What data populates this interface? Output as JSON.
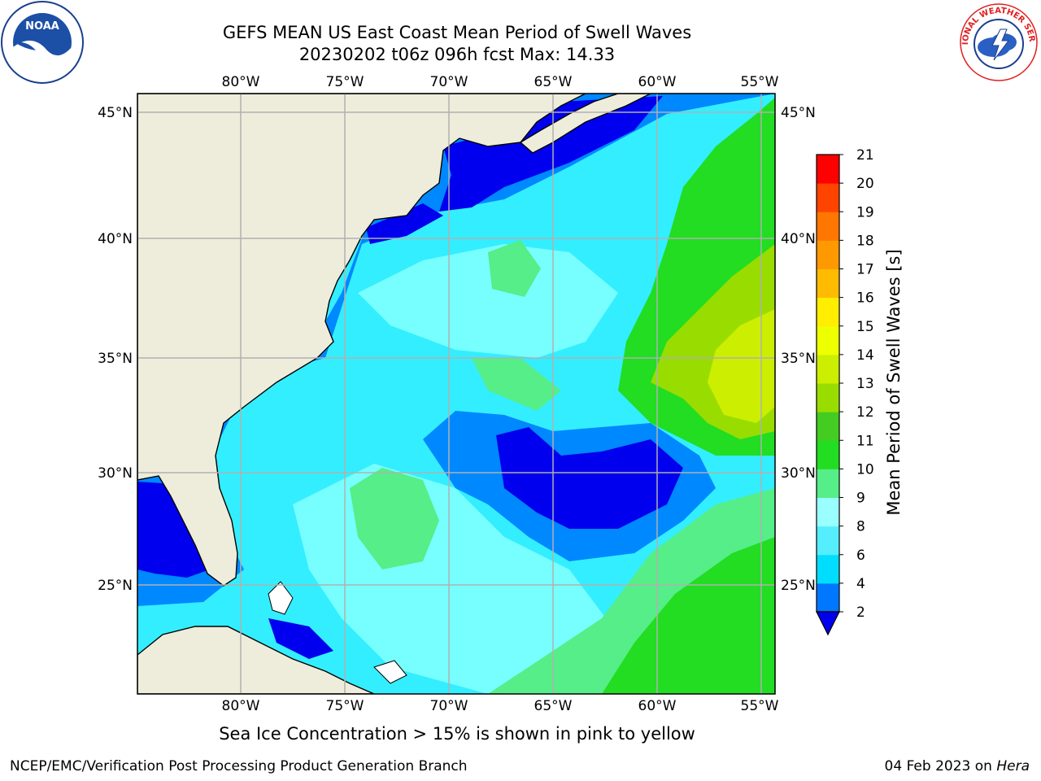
{
  "header": {
    "title_line1": "GEFS MEAN US East Coast Mean Period of Swell Waves",
    "title_line2": "20230202 t06z 096h fcst   Max: 14.33"
  },
  "map": {
    "lon_ticks": [
      "80°W",
      "75°W",
      "70°W",
      "65°W",
      "60°W",
      "55°W"
    ],
    "lat_ticks": [
      "45°N",
      "40°N",
      "35°N",
      "30°N",
      "25°N"
    ],
    "land_color": "#eeeddc",
    "grid_color": "#b0b0b0"
  },
  "colorbar": {
    "label": "Mean Period of Swell Waves [s]",
    "ticks": [
      "2",
      "4",
      "6",
      "8",
      "9",
      "10",
      "11",
      "12",
      "13",
      "14",
      "15",
      "16",
      "17",
      "18",
      "19",
      "20",
      "21"
    ],
    "colors": [
      "#0077ff",
      "#00ddff",
      "#55eeff",
      "#99ffff",
      "#55ee88",
      "#22dd22",
      "#44cc22",
      "#99dd00",
      "#ccee00",
      "#eeff00",
      "#ffee00",
      "#ffbb00",
      "#ff9900",
      "#ff7700",
      "#ff4400",
      "#ff0000"
    ],
    "extend_color": "#0000ee"
  },
  "notes": {
    "ice": "Sea Ice Concentration > 15% is shown in pink to yellow",
    "footer_left": "NCEP/EMC/Verification Post Processing Product Generation Branch",
    "footer_date": "04 Feb 2023 on ",
    "footer_machine": "Hera"
  },
  "logos": {
    "noaa_text": "NOAA",
    "nws_text": "NATIONAL WEATHER SERVICE"
  }
}
